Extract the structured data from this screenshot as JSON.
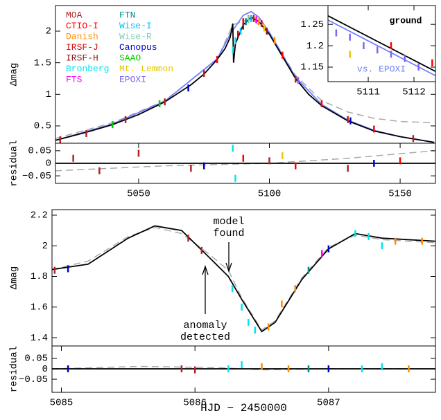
{
  "chart_data": [
    {
      "type": "line",
      "ylabel": "Δmag",
      "xlim": [
        5018.2,
        5163.5
      ],
      "ylim": [
        0.226,
        2.405
      ],
      "yticks": [
        0.5,
        1,
        1.5,
        2
      ],
      "series": [
        {
          "kind": "dashed",
          "color": "#aaaaaa",
          "x": [
            5018,
            5040,
            5060,
            5080,
            5086,
            5093,
            5100,
            5110,
            5120,
            5130,
            5140,
            5150,
            5163
          ],
          "values": [
            0.3,
            0.55,
            0.9,
            1.55,
            2.1,
            2.2,
            1.97,
            1.3,
            0.9,
            0.72,
            0.62,
            0.57,
            0.55
          ]
        },
        {
          "kind": "line",
          "color": "#6f7fff",
          "x": [
            5018,
            5040,
            5060,
            5080,
            5085,
            5090,
            5093,
            5096,
            5100,
            5110,
            5120,
            5130,
            5140,
            5150,
            5163
          ],
          "values": [
            0.27,
            0.53,
            0.89,
            1.56,
            1.95,
            2.25,
            2.31,
            2.22,
            1.98,
            1.27,
            0.84,
            0.59,
            0.43,
            0.33,
            0.24
          ]
        },
        {
          "kind": "line",
          "color": "#000000",
          "x": [
            5018,
            5030,
            5040,
            5050,
            5060,
            5070,
            5075,
            5080,
            5083,
            5085,
            5086,
            5086.3,
            5087,
            5090,
            5093,
            5096,
            5100,
            5105,
            5110,
            5115,
            5120,
            5130,
            5140,
            5150,
            5163
          ],
          "values": [
            0.27,
            0.4,
            0.52,
            0.68,
            0.88,
            1.15,
            1.32,
            1.55,
            1.72,
            1.9,
            2.12,
            1.5,
            1.8,
            2.1,
            2.22,
            2.15,
            1.95,
            1.6,
            1.25,
            1.0,
            0.82,
            0.58,
            0.42,
            0.33,
            0.24
          ]
        },
        {
          "kind": "points",
          "name": "MOA",
          "color": "#b22222",
          "x": [
            5020,
            5030,
            5045,
            5060,
            5075,
            5110,
            5130,
            5155
          ],
          "values": [
            0.28,
            0.38,
            0.6,
            0.88,
            1.33,
            1.24,
            0.6,
            0.3
          ]
        },
        {
          "kind": "points",
          "name": "CTIO-I",
          "color": "#ff0000",
          "x": [
            5080,
            5090,
            5097,
            5105,
            5120,
            5140
          ],
          "values": [
            1.55,
            2.15,
            2.12,
            1.62,
            0.85,
            0.45
          ]
        },
        {
          "kind": "points",
          "name": "Danish",
          "color": "#ff8c00",
          "x": [
            5092,
            5096,
            5102
          ],
          "values": [
            2.2,
            2.15,
            1.85
          ]
        },
        {
          "kind": "points",
          "name": "IRSF-J",
          "color": "#d01010",
          "x": [
            5088,
            5094
          ],
          "values": [
            1.95,
            2.2
          ]
        },
        {
          "kind": "points",
          "name": "IRSF-H",
          "color": "#8b1a1a",
          "x": [
            5090,
            5099
          ],
          "values": [
            2.08,
            2.0
          ]
        },
        {
          "kind": "points",
          "name": "Bronberg",
          "color": "#00e5ee",
          "x": [
            5086,
            5087
          ],
          "values": [
            1.7,
            1.85
          ]
        },
        {
          "kind": "points",
          "name": "FTS",
          "color": "#ff00ff",
          "x": [
            5095
          ],
          "values": [
            2.18
          ]
        },
        {
          "kind": "points",
          "name": "FTN",
          "color": "#008b8b",
          "x": [
            5091
          ],
          "values": [
            2.15
          ]
        },
        {
          "kind": "points",
          "name": "Wise-I",
          "color": "#00bfff",
          "x": [
            5089,
            5093
          ],
          "values": [
            2.0,
            2.2
          ]
        },
        {
          "kind": "points",
          "name": "Wise-R",
          "color": "#7fcdbb",
          "x": [
            5092
          ],
          "values": [
            2.18
          ]
        },
        {
          "kind": "points",
          "name": "Canopus",
          "color": "#0000cd",
          "x": [
            5069,
            5131
          ],
          "values": [
            1.1,
            0.58
          ]
        },
        {
          "kind": "points",
          "name": "SAAO",
          "color": "#00cd00",
          "x": [
            5040,
            5058
          ],
          "values": [
            0.52,
            0.85
          ]
        },
        {
          "kind": "points",
          "name": "Mt. Lemmon",
          "color": "#e6c800",
          "x": [
            5098
          ],
          "values": [
            2.05
          ]
        },
        {
          "kind": "points",
          "name": "EPOXI",
          "color": "#7b68ee",
          "x": [
            5111
          ],
          "values": [
            1.22
          ]
        }
      ]
    },
    {
      "type": "line",
      "ylabel": "residual",
      "xlim": [
        5018.2,
        5163.5
      ],
      "ylim": [
        -0.08,
        0.08
      ],
      "xticks": [
        5050,
        5100,
        5150
      ],
      "yticks": [
        0.05,
        0,
        {
          "value": -0.05,
          "label": "−0.05"
        }
      ],
      "series": [
        {
          "kind": "dashed",
          "color": "#aaaaaa",
          "x": [
            5018,
            5060,
            5100,
            5130,
            5163
          ],
          "values": [
            -0.03,
            -0.01,
            0.0,
            0.02,
            0.05
          ]
        },
        {
          "kind": "line",
          "color": "#000000",
          "x": [
            5018.2,
            5163.5
          ],
          "values": [
            0,
            0
          ]
        },
        {
          "kind": "points",
          "color": "#b22222",
          "x": [
            5025,
            5035,
            5050,
            5070,
            5100,
            5130
          ],
          "values": [
            0.02,
            -0.03,
            0.04,
            -0.02,
            0.01,
            -0.02
          ]
        },
        {
          "kind": "points",
          "color": "#00e5ee",
          "x": [
            5086,
            5087
          ],
          "values": [
            0.06,
            -0.06
          ]
        },
        {
          "kind": "points",
          "color": "#ff0000",
          "x": [
            5090,
            5110,
            5150
          ],
          "values": [
            0.02,
            -0.01,
            0.01
          ]
        },
        {
          "kind": "points",
          "color": "#e6c800",
          "x": [
            5105
          ],
          "values": [
            0.03
          ]
        },
        {
          "kind": "points",
          "color": "#0000cd",
          "x": [
            5075,
            5140
          ],
          "values": [
            -0.01,
            0.0
          ]
        }
      ]
    },
    {
      "type": "line",
      "annotations": [
        "ground",
        "vs. EPOXI"
      ],
      "xlim": [
        5110.12,
        5112.47
      ],
      "ylim": [
        1.116,
        1.294
      ],
      "xticks": [
        5111,
        5112
      ],
      "yticks": [
        1.15,
        1.2,
        1.25
      ],
      "series": [
        {
          "kind": "line",
          "color": "#000000",
          "x": [
            5110.12,
            5112.47
          ],
          "values": [
            1.27,
            1.14
          ]
        },
        {
          "kind": "line",
          "color": "#6f7fff",
          "x": [
            5110.12,
            5112.47
          ],
          "values": [
            1.26,
            1.13
          ]
        },
        {
          "kind": "points",
          "color": "#7b68ee",
          "x": [
            5110.3,
            5110.6,
            5110.9,
            5111.2,
            5111.5,
            5111.8,
            5112.1
          ],
          "values": [
            1.23,
            1.22,
            1.2,
            1.19,
            1.18,
            1.17,
            1.15
          ]
        },
        {
          "kind": "points",
          "color": "#ff0000",
          "x": [
            5111.5,
            5112.4
          ],
          "values": [
            1.2,
            1.16
          ]
        },
        {
          "kind": "points",
          "color": "#e6c800",
          "x": [
            5110.6
          ],
          "values": [
            1.18
          ]
        }
      ]
    },
    {
      "type": "line",
      "ylabel": "Δmag",
      "annotations": [
        "model found",
        "anomaly detected"
      ],
      "xlim": [
        5084.93,
        5087.8
      ],
      "ylim": [
        1.346,
        2.236
      ],
      "yticks": [
        1.4,
        1.6,
        1.8,
        2,
        2.2
      ],
      "series": [
        {
          "kind": "dashed",
          "color": "#aaaaaa",
          "x": [
            5084.93,
            5085.2,
            5085.5,
            5085.7,
            5085.9,
            5086.1,
            5086.25,
            5086.35,
            5086.5,
            5086.6,
            5086.8,
            5087.0,
            5087.2,
            5087.4,
            5087.8
          ],
          "values": [
            1.845,
            1.9,
            2.06,
            2.12,
            2.08,
            1.95,
            1.84,
            1.66,
            1.45,
            1.51,
            1.79,
            1.99,
            2.07,
            2.04,
            2.02
          ]
        },
        {
          "kind": "line",
          "color": "#000000",
          "x": [
            5084.93,
            5085.2,
            5085.5,
            5085.7,
            5085.9,
            5086.1,
            5086.25,
            5086.35,
            5086.5,
            5086.6,
            5086.8,
            5087.0,
            5087.2,
            5087.4,
            5087.8
          ],
          "values": [
            1.845,
            1.88,
            2.05,
            2.13,
            2.1,
            1.93,
            1.8,
            1.65,
            1.44,
            1.5,
            1.78,
            1.98,
            2.08,
            2.05,
            2.03
          ]
        },
        {
          "kind": "points",
          "color": "#b22222",
          "x": [
            5084.95,
            5085.95,
            5086.05
          ],
          "values": [
            1.84,
            2.05,
            1.97
          ]
        },
        {
          "kind": "points",
          "color": "#00e5ee",
          "x": [
            5086.28,
            5086.35,
            5086.4,
            5086.45,
            5087.2,
            5087.3,
            5087.4
          ],
          "values": [
            1.72,
            1.6,
            1.5,
            1.45,
            2.08,
            2.06,
            2.0
          ]
        },
        {
          "kind": "points",
          "color": "#ff8c00",
          "x": [
            5086.55,
            5086.65,
            5086.75,
            5087.5,
            5087.7
          ],
          "values": [
            1.47,
            1.62,
            1.72,
            2.03,
            2.03
          ]
        },
        {
          "kind": "points",
          "color": "#008b8b",
          "x": [
            5086.85
          ],
          "values": [
            1.84
          ]
        },
        {
          "kind": "points",
          "color": "#ff00ff",
          "x": [
            5086.95
          ],
          "values": [
            1.95
          ]
        },
        {
          "kind": "points",
          "color": "#0000cd",
          "x": [
            5085.05,
            5087.0
          ],
          "values": [
            1.85,
            1.98
          ]
        }
      ]
    },
    {
      "type": "line",
      "ylabel": "residual",
      "xlabel": "HJD − 2450000",
      "xlim": [
        5084.93,
        5087.8
      ],
      "ylim": [
        -0.113,
        0.11
      ],
      "xticks": [
        5085,
        5086,
        5087
      ],
      "yticks": [
        0.05,
        0,
        {
          "value": -0.05,
          "label": "−0.05"
        }
      ],
      "series": [
        {
          "kind": "dashed",
          "color": "#aaaaaa",
          "x": [
            5084.93,
            5085.6,
            5086.2,
            5086.5,
            5087.0,
            5087.8
          ],
          "values": [
            0.0,
            0.012,
            0.005,
            -0.005,
            0.0,
            0.0
          ]
        },
        {
          "kind": "line",
          "color": "#000000",
          "x": [
            5084.93,
            5087.8
          ],
          "values": [
            0,
            0
          ]
        },
        {
          "kind": "points",
          "color": "#b22222",
          "x": [
            5085.9,
            5086.0
          ],
          "values": [
            0.0,
            -0.005
          ]
        },
        {
          "kind": "points",
          "color": "#00e5ee",
          "x": [
            5086.25,
            5086.35,
            5087.25,
            5087.4
          ],
          "values": [
            0.0,
            0.02,
            0.0,
            0.01
          ]
        },
        {
          "kind": "points",
          "color": "#ff8c00",
          "x": [
            5086.5,
            5086.7,
            5087.6
          ],
          "values": [
            0.01,
            0.0,
            0.0
          ]
        },
        {
          "kind": "points",
          "color": "#008b8b",
          "x": [
            5086.85
          ],
          "values": [
            0.0
          ]
        },
        {
          "kind": "points",
          "color": "#0000cd",
          "x": [
            5085.05,
            5087.0
          ],
          "values": [
            0.0,
            0.0
          ]
        }
      ]
    }
  ]
}
